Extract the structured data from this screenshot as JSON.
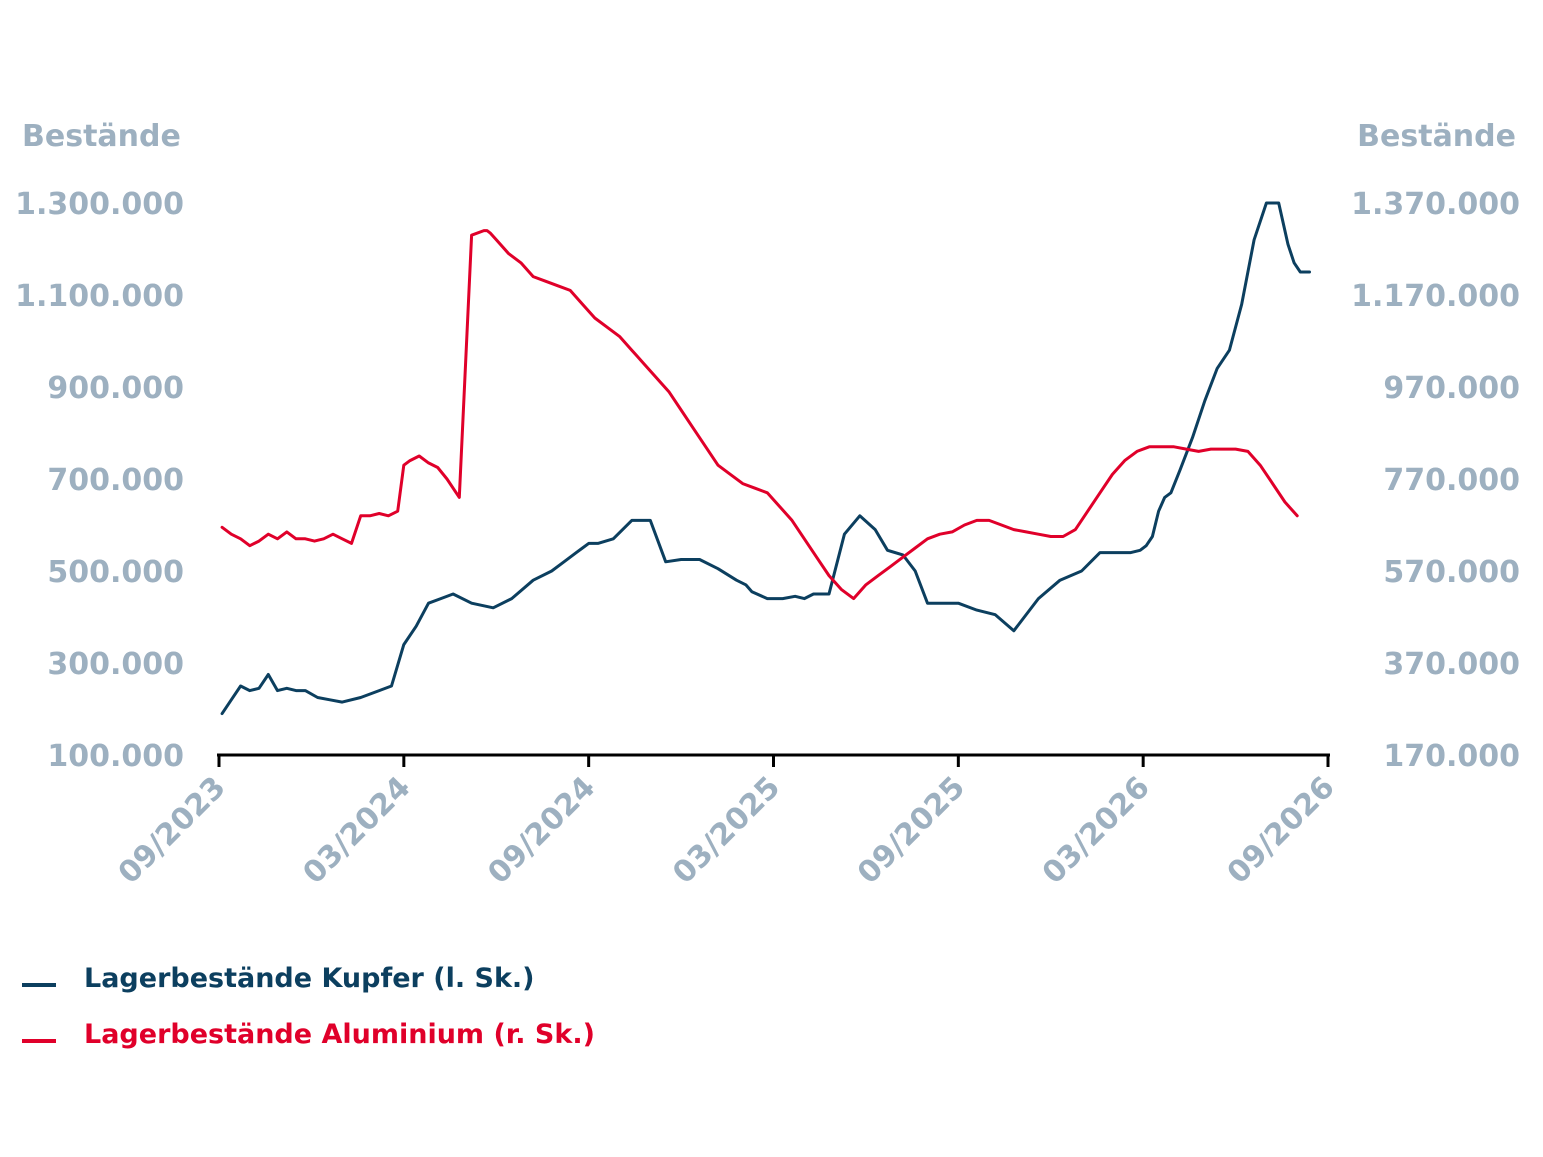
{
  "chart_data": {
    "type": "line",
    "y_left_title": "Bestände",
    "y_right_title": "Bestände",
    "y_left_ticks": [
      "1.300.000",
      "1.100.000",
      "900.000",
      "700.000",
      "500.000",
      "300.000",
      "100.000"
    ],
    "y_left_tick_values": [
      1300000,
      1100000,
      900000,
      700000,
      500000,
      300000,
      100000
    ],
    "y_right_ticks": [
      "1.370.000",
      "1.170.000",
      "970.000",
      "770.000",
      "570.000",
      "370.000",
      "170.000"
    ],
    "y_right_tick_values": [
      1370000,
      1170000,
      970000,
      770000,
      570000,
      370000,
      170000
    ],
    "ylim_left": [
      100000,
      1300000
    ],
    "ylim_right": [
      170000,
      1370000
    ],
    "x_ticks": [
      "09/2023",
      "03/2024",
      "09/2024",
      "03/2025",
      "09/2025",
      "03/2026",
      "09/2026"
    ],
    "x_range_months": [
      0,
      36
    ],
    "legend_placement": "bottom-left",
    "grid": false,
    "series": [
      {
        "name": "Lagerbestände Kupfer (l. Sk.)",
        "axis": "left",
        "color": "#0c3f5f",
        "x": [
          0.1,
          0.4,
          0.7,
          1.0,
          1.3,
          1.6,
          1.9,
          2.2,
          2.5,
          2.8,
          3.2,
          3.6,
          4.0,
          4.6,
          5.2,
          5.6,
          6.0,
          6.4,
          6.8,
          7.2,
          7.6,
          8.2,
          8.9,
          9.5,
          10.2,
          10.8,
          11.2,
          11.6,
          11.8,
          12.0,
          12.3,
          12.8,
          13.4,
          14.0,
          14.5,
          15.0,
          15.6,
          16.2,
          16.8,
          17.1,
          17.3,
          17.8,
          18.3,
          18.7,
          19.0,
          19.3,
          19.8,
          20.3,
          20.8,
          21.3,
          21.7,
          22.2,
          22.6,
          23.0,
          23.5,
          24.0,
          24.6,
          25.2,
          25.8,
          26.6,
          27.3,
          28.0,
          28.6,
          29.1,
          29.6,
          29.9,
          30.1,
          30.3,
          30.5,
          30.7,
          30.9,
          31.2,
          31.6,
          32.0,
          32.4,
          32.8,
          33.2,
          33.6,
          34.0,
          34.4,
          34.7,
          34.9,
          35.1,
          35.4
        ],
        "values": [
          190000,
          220000,
          250000,
          240000,
          245000,
          275000,
          240000,
          245000,
          240000,
          240000,
          225000,
          220000,
          215000,
          225000,
          240000,
          250000,
          340000,
          380000,
          430000,
          440000,
          450000,
          430000,
          420000,
          440000,
          480000,
          500000,
          520000,
          540000,
          550000,
          560000,
          560000,
          570000,
          610000,
          610000,
          520000,
          525000,
          525000,
          505000,
          480000,
          470000,
          455000,
          440000,
          440000,
          445000,
          440000,
          450000,
          450000,
          580000,
          620000,
          590000,
          545000,
          535000,
          500000,
          430000,
          430000,
          430000,
          415000,
          405000,
          370000,
          440000,
          480000,
          500000,
          540000,
          540000,
          540000,
          545000,
          555000,
          575000,
          630000,
          660000,
          670000,
          720000,
          790000,
          870000,
          940000,
          980000,
          1080000,
          1220000,
          1300000,
          1300000,
          1210000,
          1170000,
          1150000,
          1150000
        ]
      },
      {
        "name": "Lagerbestände Aluminium (r. Sk.)",
        "axis": "right",
        "color": "#e0002a",
        "x": [
          0.1,
          0.4,
          0.7,
          1.0,
          1.3,
          1.6,
          1.9,
          2.2,
          2.5,
          2.8,
          3.1,
          3.4,
          3.7,
          4.0,
          4.3,
          4.6,
          4.9,
          5.2,
          5.5,
          5.8,
          6.0,
          6.2,
          6.5,
          6.8,
          7.1,
          7.4,
          7.8,
          8.2,
          8.6,
          8.7,
          8.8,
          9.0,
          9.4,
          9.8,
          10.2,
          10.6,
          11.0,
          11.4,
          11.8,
          12.2,
          12.6,
          13.0,
          13.4,
          13.8,
          14.2,
          14.6,
          15.0,
          15.4,
          15.8,
          16.2,
          16.6,
          17.0,
          17.4,
          17.8,
          18.2,
          18.6,
          19.0,
          19.4,
          19.8,
          20.2,
          20.6,
          21.0,
          21.4,
          21.8,
          22.2,
          22.6,
          23.0,
          23.4,
          23.8,
          24.2,
          24.6,
          25.0,
          25.4,
          25.8,
          26.2,
          26.6,
          27.0,
          27.4,
          27.8,
          28.2,
          28.6,
          29.0,
          29.4,
          29.8,
          30.2,
          30.6,
          31.0,
          31.4,
          31.8,
          32.2,
          32.6,
          33.0,
          33.4,
          33.8,
          34.2,
          34.6,
          35.0
        ],
        "values": [
          665000,
          650000,
          640000,
          625000,
          635000,
          650000,
          640000,
          655000,
          640000,
          640000,
          635000,
          640000,
          650000,
          640000,
          630000,
          690000,
          690000,
          695000,
          690000,
          700000,
          800000,
          810000,
          820000,
          805000,
          795000,
          770000,
          730000,
          1300000,
          1310000,
          1310000,
          1305000,
          1290000,
          1260000,
          1240000,
          1210000,
          1200000,
          1190000,
          1180000,
          1150000,
          1120000,
          1100000,
          1080000,
          1050000,
          1020000,
          990000,
          960000,
          920000,
          880000,
          840000,
          800000,
          780000,
          760000,
          750000,
          740000,
          710000,
          680000,
          640000,
          600000,
          560000,
          530000,
          510000,
          540000,
          560000,
          580000,
          600000,
          620000,
          640000,
          650000,
          655000,
          670000,
          680000,
          680000,
          670000,
          660000,
          655000,
          650000,
          645000,
          645000,
          660000,
          700000,
          740000,
          780000,
          810000,
          830000,
          840000,
          840000,
          840000,
          835000,
          830000,
          835000,
          835000,
          835000,
          830000,
          800000,
          760000,
          720000,
          690000
        ]
      }
    ]
  }
}
